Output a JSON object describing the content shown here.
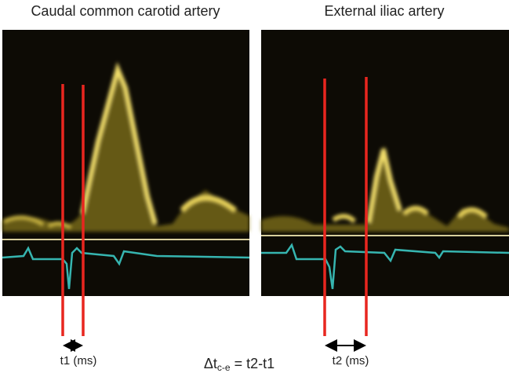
{
  "panels": [
    {
      "title": "Caudal common carotid artery",
      "interval_label": "t1 (ms)"
    },
    {
      "title": "External iliac artery",
      "interval_label": "t2 (ms)"
    }
  ],
  "formula": {
    "prefix": "Δt",
    "subscript": "c-e",
    "suffix": " = t2-t1"
  }
}
